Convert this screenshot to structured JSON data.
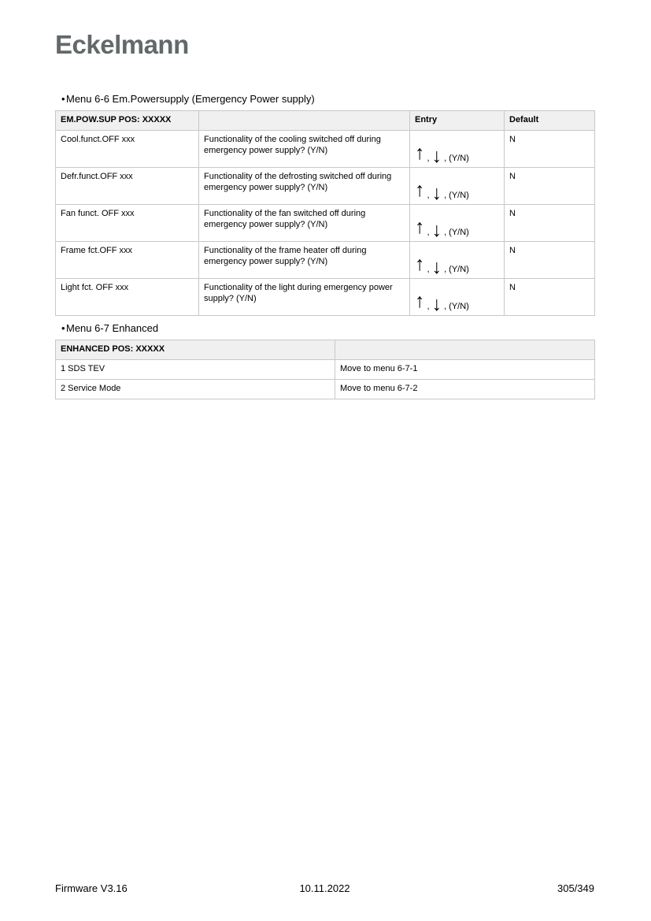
{
  "logo": {
    "text": "Eckelmann",
    "color": "#63696b"
  },
  "symbols": {
    "bullet": "•",
    "up_arrow": "↑",
    "down_arrow": "↓",
    "comma": ","
  },
  "menu_6_6": {
    "heading": "Menu 6-6 Em.Powersupply (Emergency Power supply)",
    "table": {
      "header": {
        "col1": "EM.POW.SUP POS: XXXXX",
        "col2": "",
        "col3": "Entry",
        "col4": "Default"
      },
      "entry_suffix": ", (Y/N)",
      "rows": [
        {
          "param": "Cool.funct.OFF xxx",
          "description": "Functionality of the cooling switched off during emergency power supply? (Y/N)",
          "default": "N"
        },
        {
          "param": "Defr.funct.OFF xxx",
          "description": "Functionality of the defrosting switched off during emergency power supply? (Y/N)",
          "default": "N"
        },
        {
          "param": "Fan funct. OFF xxx",
          "description": "Functionality of the fan switched off during emergency power supply? (Y/N)",
          "default": "N"
        },
        {
          "param": "Frame fct.OFF xxx",
          "description": "Functionality of the frame heater off during emergency power supply? (Y/N)",
          "default": "N"
        },
        {
          "param": "Light fct. OFF xxx",
          "description": "Functionality of the light during emergency power supply? (Y/N)",
          "default": "N"
        }
      ]
    }
  },
  "menu_6_7": {
    "heading": "Menu 6-7 Enhanced",
    "table": {
      "header": {
        "col1": "ENHANCED POS: XXXXX",
        "col2": ""
      },
      "rows": [
        {
          "item": "1 SDS TEV",
          "action": "Move to menu 6-7-1"
        },
        {
          "item": "2 Service Mode",
          "action": "Move to menu 6-7-2"
        }
      ]
    }
  },
  "footer": {
    "left": "Firmware V3.16",
    "center": "10.11.2022",
    "right": "305/349"
  }
}
